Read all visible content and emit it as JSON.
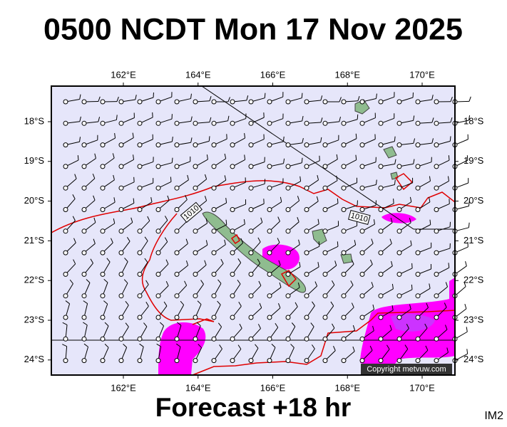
{
  "header": {
    "title": "0500 NCDT Mon 17 Nov 2025"
  },
  "map": {
    "lon_ticks": [
      "162°E",
      "164°E",
      "166°E",
      "168°E",
      "170°E"
    ],
    "lat_ticks": [
      "18°S",
      "19°S",
      "20°S",
      "21°S",
      "22°S",
      "23°S",
      "24°S"
    ],
    "isobar_labels": [
      "1010",
      "1010"
    ],
    "copyright": "Copyright metvuw.com"
  },
  "footer": {
    "forecast": "Forecast +18 hr",
    "code": "IM2"
  }
}
